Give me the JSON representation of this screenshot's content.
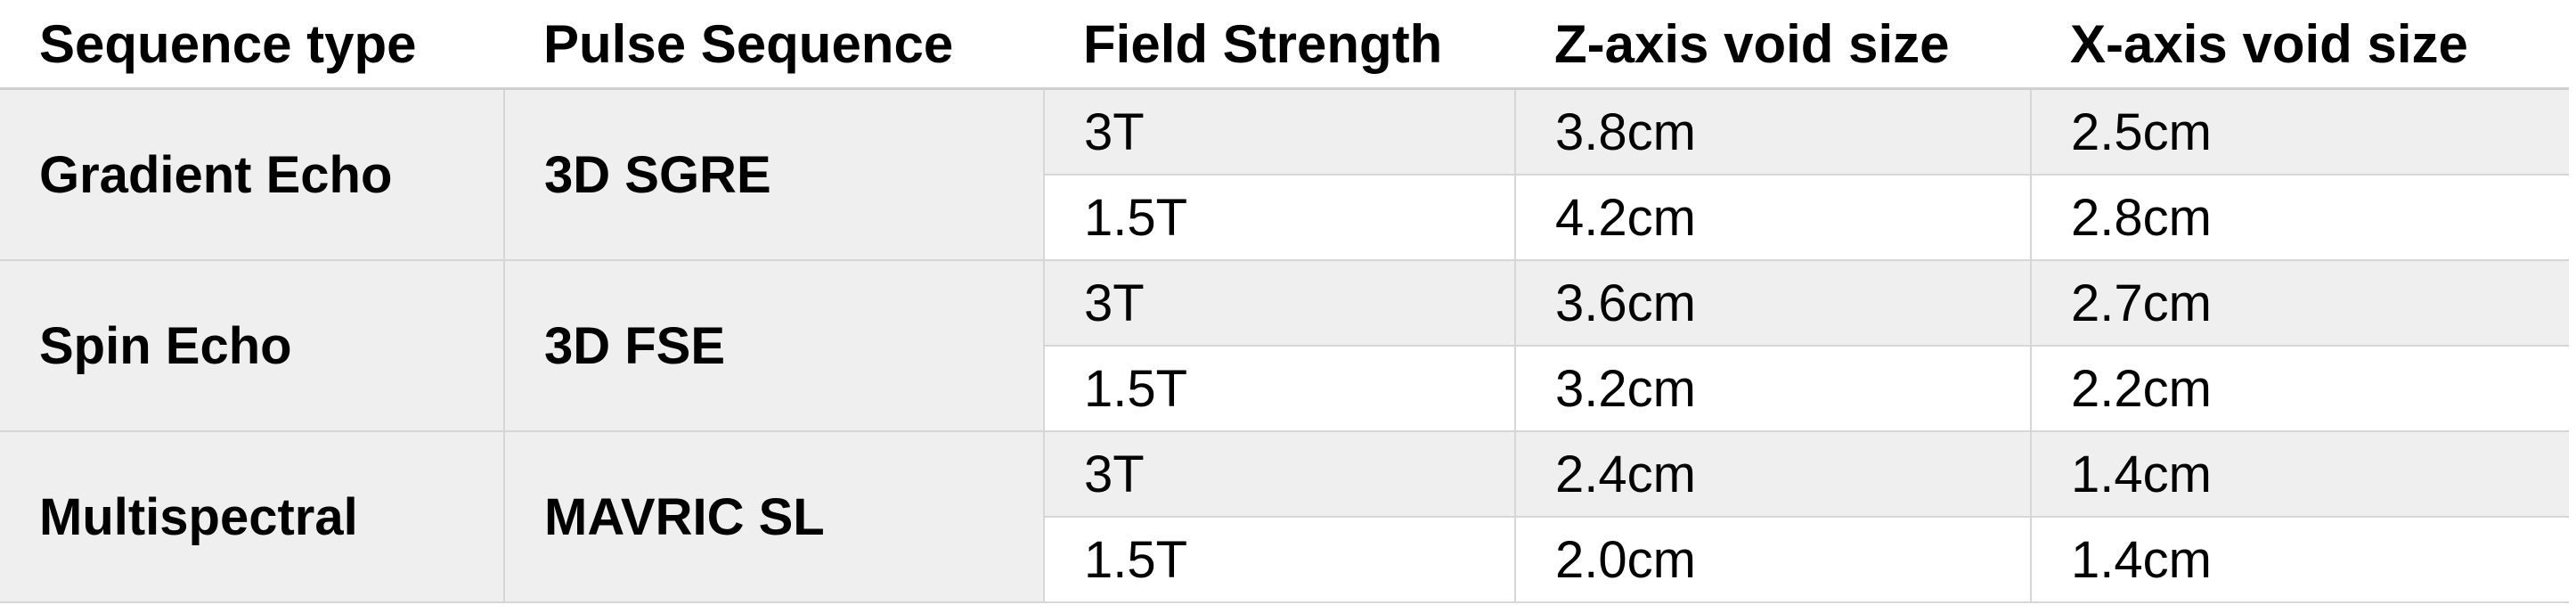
{
  "table": {
    "header": [
      "Sequence type",
      "Pulse Sequence",
      "Field Strength",
      "Z-axis void size",
      "X-axis void size"
    ],
    "groups": [
      {
        "sequence_type": "Gradient Echo",
        "pulse_sequence": "3D SGRE",
        "rows": [
          [
            "3T",
            "3.8cm",
            "2.5cm"
          ],
          [
            "1.5T",
            "4.2cm",
            "2.8cm"
          ]
        ]
      },
      {
        "sequence_type": "Spin Echo",
        "pulse_sequence": "3D FSE",
        "rows": [
          [
            "3T",
            "3.6cm",
            "2.7cm"
          ],
          [
            "1.5T",
            "3.2cm",
            "2.2cm"
          ]
        ]
      },
      {
        "sequence_type": "Multispectral",
        "pulse_sequence": "MAVRIC SL",
        "rows": [
          [
            "3T",
            "2.4cm",
            "1.4cm"
          ],
          [
            "1.5T",
            "2.0cm",
            "1.4cm"
          ]
        ]
      }
    ]
  }
}
